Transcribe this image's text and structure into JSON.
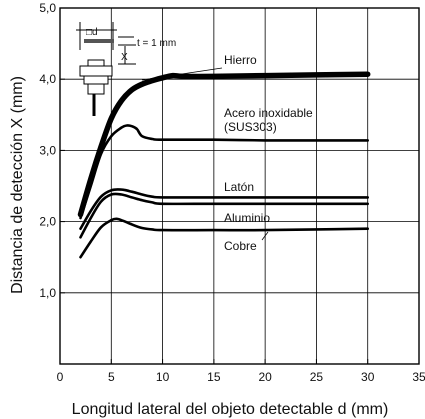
{
  "chart_data": {
    "type": "line",
    "xlabel": "Longitud lateral del objeto detectable d (mm)",
    "ylabel": "Distancia de detección X (mm)",
    "xlim": [
      0,
      35
    ],
    "ylim": [
      0,
      5
    ],
    "xticks": [
      0,
      5,
      10,
      15,
      20,
      25,
      30,
      35
    ],
    "xtick_labels": [
      "0",
      "5",
      "10",
      "15",
      "20",
      "25",
      "30",
      "35"
    ],
    "yticks": [
      1,
      2,
      3,
      4,
      5
    ],
    "ytick_labels": [
      "1,0",
      "2,0",
      "3,0",
      "4,0",
      "5,0"
    ],
    "grid": true,
    "series": [
      {
        "name": "Hierro",
        "line_color": "#000000",
        "bold": true,
        "x": [
          2,
          3,
          4,
          5,
          6,
          7,
          8,
          9,
          10,
          11,
          12,
          15,
          20,
          25,
          30
        ],
        "y": [
          2.1,
          2.6,
          3.05,
          3.45,
          3.7,
          3.85,
          3.93,
          3.98,
          4.02,
          4.05,
          4.04,
          4.04,
          4.05,
          4.06,
          4.07
        ]
      },
      {
        "name": "Acero inoxidable (SUS303)",
        "line_color": "#000000",
        "bold": false,
        "x": [
          2,
          3,
          4,
          5,
          6,
          6.5,
          7,
          7.5,
          8,
          9,
          10,
          15,
          20,
          25,
          30
        ],
        "y": [
          2.05,
          2.5,
          2.95,
          3.2,
          3.32,
          3.35,
          3.34,
          3.3,
          3.2,
          3.16,
          3.15,
          3.15,
          3.14,
          3.14,
          3.14
        ]
      },
      {
        "name": "Latón",
        "line_color": "#000000",
        "bold": false,
        "x": [
          2,
          3,
          4,
          5,
          6,
          7,
          8,
          9,
          10,
          15,
          20,
          25,
          30
        ],
        "y": [
          1.9,
          2.15,
          2.35,
          2.44,
          2.45,
          2.42,
          2.38,
          2.35,
          2.34,
          2.34,
          2.34,
          2.34,
          2.34
        ]
      },
      {
        "name": "Aluminio",
        "line_color": "#000000",
        "bold": false,
        "x": [
          2,
          3,
          4,
          5,
          6,
          7,
          8,
          9,
          10,
          15,
          20,
          25,
          30
        ],
        "y": [
          1.78,
          2.05,
          2.28,
          2.38,
          2.38,
          2.34,
          2.3,
          2.27,
          2.25,
          2.25,
          2.25,
          2.25,
          2.25
        ]
      },
      {
        "name": "Cobre",
        "line_color": "#000000",
        "bold": false,
        "x": [
          2,
          3,
          4,
          5,
          5.5,
          6,
          7,
          8,
          9,
          10,
          15,
          20,
          25,
          30
        ],
        "y": [
          1.5,
          1.72,
          1.92,
          2.02,
          2.04,
          2.02,
          1.96,
          1.91,
          1.89,
          1.88,
          1.88,
          1.88,
          1.89,
          1.9
        ]
      }
    ],
    "annotations": [
      {
        "text": "Hierro"
      },
      {
        "text": "Acero inoxidable"
      },
      {
        "text": "(SUS303)"
      },
      {
        "text": "Latón"
      },
      {
        "text": "Aluminio"
      },
      {
        "text": "Cobre"
      }
    ],
    "inset": {
      "d_label": "□d",
      "t_label": "t = 1 mm",
      "x_label": "X"
    }
  }
}
